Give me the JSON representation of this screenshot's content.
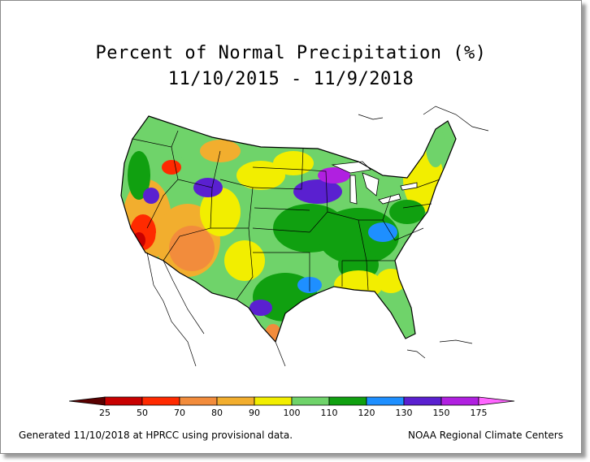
{
  "title_line1": "Percent of Normal Precipitation (%)",
  "title_line2": "11/10/2015 - 11/9/2018",
  "legend": {
    "ticks": [
      "25",
      "50",
      "70",
      "80",
      "90",
      "100",
      "110",
      "120",
      "130",
      "150",
      "175"
    ],
    "colors": [
      "#5a0000",
      "#c80000",
      "#ff2a00",
      "#f28c3c",
      "#f2ae2e",
      "#f2ee00",
      "#6fd36a",
      "#10a010",
      "#1e8fff",
      "#5a20d0",
      "#b020e0",
      "#ff66ff"
    ]
  },
  "footer_left": "Generated 11/10/2018 at HPRCC using provisional data.",
  "footer_right": "NOAA Regional Climate Centers",
  "colors": {
    "frame_border": "#8a8a8a",
    "state_lines": "#000000"
  }
}
